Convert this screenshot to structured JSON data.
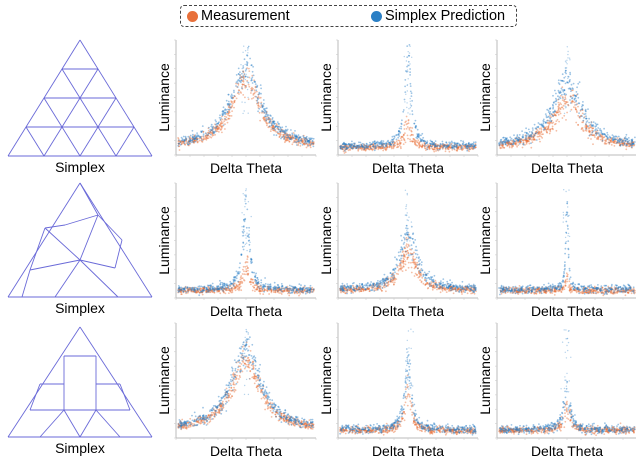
{
  "legend": {
    "measurement_label": "Measurement",
    "prediction_label": "Simplex Prediction"
  },
  "colors": {
    "measurement": "#e8703a",
    "prediction": "#2a7fc5",
    "simplex_lines": "#6a6ad8"
  },
  "labels": {
    "simplex": "Simplex",
    "xlabel": "Delta Theta",
    "ylabel": "Luminance"
  },
  "chart_data": [
    {
      "type": "scatter",
      "row": 1,
      "col": 1,
      "xlabel": "Delta Theta",
      "ylabel": "Luminance",
      "grid": false,
      "shape": "broad",
      "peak_measurement": 0.62,
      "peak_prediction": 0.72
    },
    {
      "type": "scatter",
      "row": 1,
      "col": 2,
      "xlabel": "Delta Theta",
      "ylabel": "Luminance",
      "grid": false,
      "shape": "narrow",
      "peak_measurement": 0.22,
      "peak_prediction": 0.85
    },
    {
      "type": "scatter",
      "row": 1,
      "col": 3,
      "xlabel": "Delta Theta",
      "ylabel": "Luminance",
      "grid": false,
      "shape": "broad",
      "peak_measurement": 0.42,
      "peak_prediction": 0.58
    },
    {
      "type": "scatter",
      "row": 2,
      "col": 1,
      "xlabel": "Delta Theta",
      "ylabel": "Luminance",
      "grid": false,
      "shape": "narrow",
      "peak_measurement": 0.22,
      "peak_prediction": 0.75
    },
    {
      "type": "scatter",
      "row": 2,
      "col": 2,
      "xlabel": "Delta Theta",
      "ylabel": "Luminance",
      "grid": false,
      "shape": "medium",
      "peak_measurement": 0.35,
      "peak_prediction": 0.55
    },
    {
      "type": "scatter",
      "row": 2,
      "col": 3,
      "xlabel": "Delta Theta",
      "ylabel": "Luminance",
      "grid": false,
      "shape": "spike",
      "peak_measurement": 0.12,
      "peak_prediction": 0.8
    },
    {
      "type": "scatter",
      "row": 3,
      "col": 1,
      "xlabel": "Delta Theta",
      "ylabel": "Luminance",
      "grid": false,
      "shape": "broad",
      "peak_measurement": 0.65,
      "peak_prediction": 0.72
    },
    {
      "type": "scatter",
      "row": 3,
      "col": 2,
      "xlabel": "Delta Theta",
      "ylabel": "Luminance",
      "grid": false,
      "shape": "narrow",
      "peak_measurement": 0.35,
      "peak_prediction": 0.6
    },
    {
      "type": "scatter",
      "row": 3,
      "col": 3,
      "xlabel": "Delta Theta",
      "ylabel": "Luminance",
      "grid": false,
      "shape": "narrow",
      "peak_measurement": 0.22,
      "peak_prediction": 0.35
    }
  ]
}
